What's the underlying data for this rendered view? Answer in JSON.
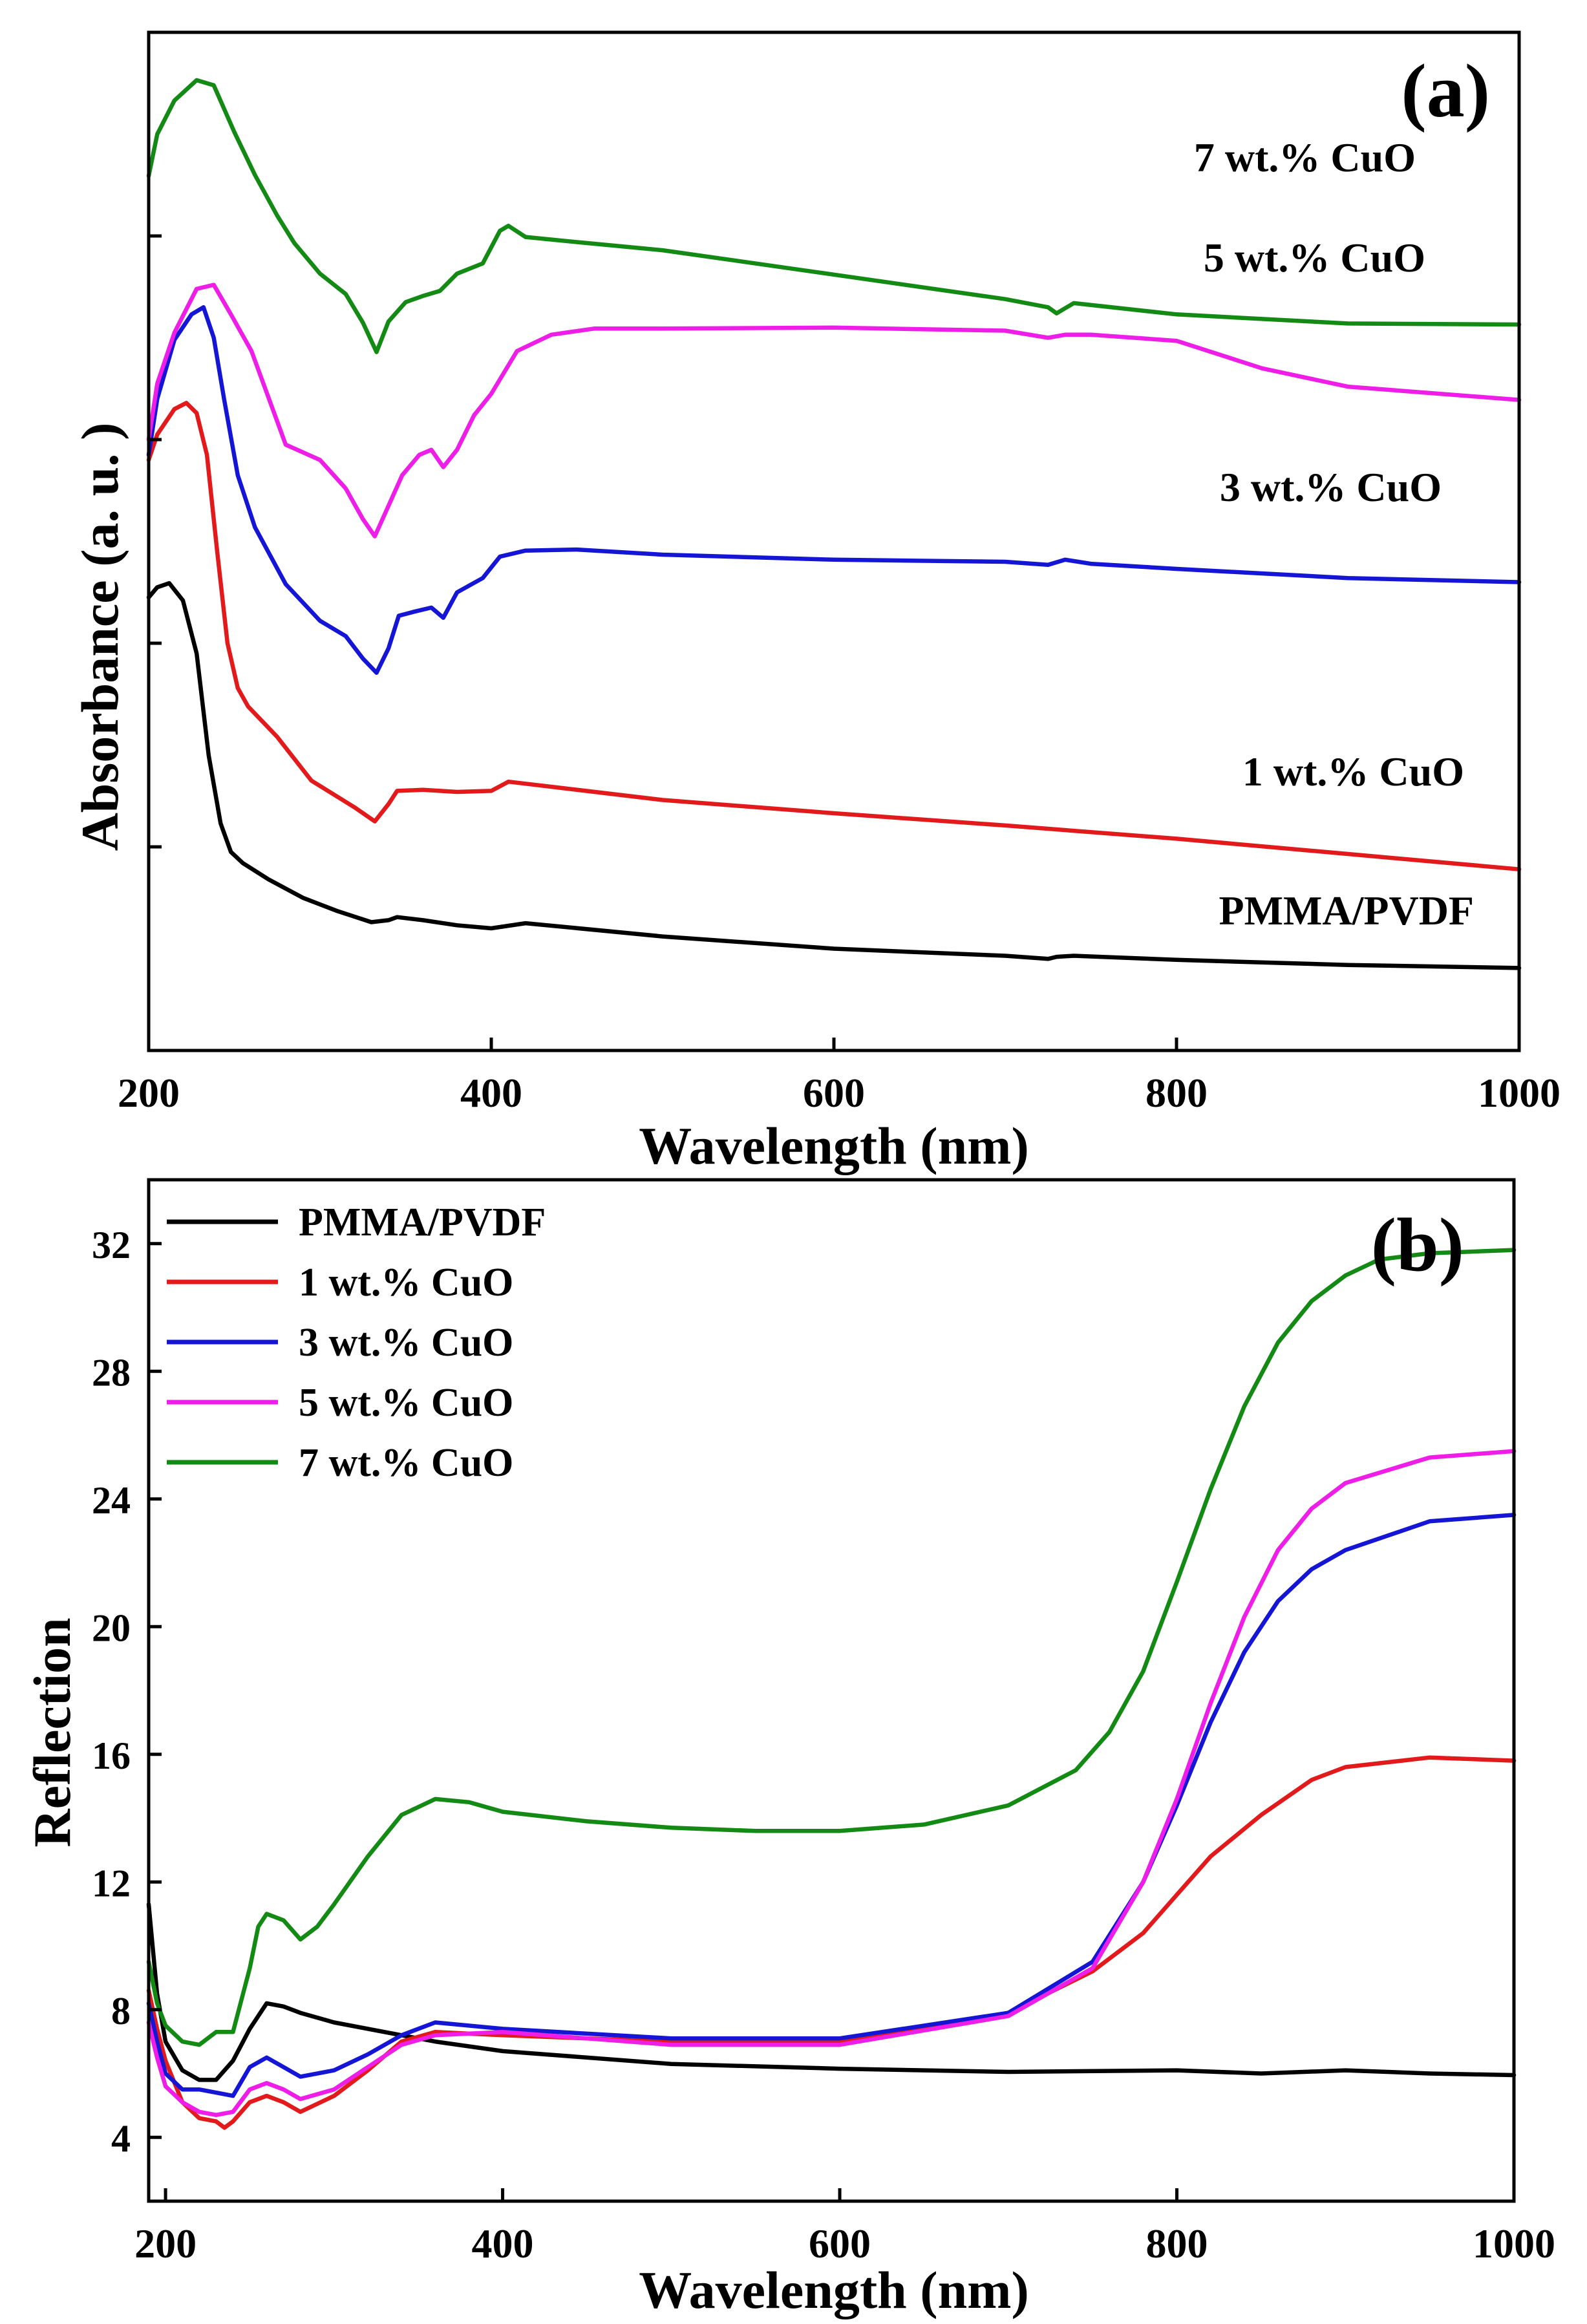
{
  "chart_data": [
    {
      "id": "a",
      "type": "line",
      "panel_label": "(a)",
      "title": "",
      "xlabel": "Wavelength (nm)",
      "ylabel": "Absorbance (a. u. )",
      "xlim": [
        200,
        1000
      ],
      "ylim": [
        0,
        100
      ],
      "x_ticks": [
        200,
        400,
        600,
        800,
        1000
      ],
      "y_ticks": [
        20,
        40,
        60,
        80,
        100
      ],
      "y_tick_labels_shown": false,
      "legend": "none",
      "series": [
        {
          "name": "PMMA/PVDF",
          "label": "PMMA/PVDF",
          "color": "#000000",
          "x": [
            200,
            205,
            212,
            220,
            228,
            235,
            242,
            248,
            255,
            270,
            290,
            310,
            330,
            340,
            345,
            360,
            380,
            400,
            420,
            500,
            600,
            700,
            725,
            730,
            740,
            800,
            900,
            1000
          ],
          "y": [
            44.5,
            45.5,
            45.9,
            44.2,
            39.0,
            29.0,
            22.3,
            19.5,
            18.4,
            16.8,
            15.0,
            13.7,
            12.6,
            12.8,
            13.1,
            12.8,
            12.3,
            12.0,
            12.5,
            11.2,
            10.0,
            9.3,
            9.0,
            9.2,
            9.3,
            8.9,
            8.4,
            8.1
          ]
        },
        {
          "name": "1 wt.% CuO",
          "label": "1 wt.% CuO",
          "color": "#e31a1c",
          "x": [
            200,
            205,
            215,
            222,
            228,
            234,
            240,
            246,
            252,
            258,
            275,
            295,
            320,
            332,
            340,
            345,
            360,
            380,
            400,
            410,
            420,
            500,
            600,
            700,
            800,
            900,
            1000
          ],
          "y": [
            58.0,
            60.5,
            63.0,
            63.6,
            62.6,
            58.5,
            49.0,
            40.0,
            35.6,
            33.8,
            30.8,
            26.5,
            23.9,
            22.5,
            24.2,
            25.5,
            25.6,
            25.4,
            25.5,
            26.4,
            26.2,
            24.6,
            23.3,
            22.1,
            20.8,
            19.3,
            17.8
          ]
        },
        {
          "name": "3 wt.% CuO",
          "label": "3 wt.% CuO",
          "color": "#1515d6",
          "x": [
            200,
            205,
            215,
            225,
            232,
            238,
            244,
            252,
            262,
            280,
            300,
            315,
            325,
            333,
            340,
            346,
            355,
            365,
            372,
            380,
            395,
            405,
            420,
            450,
            500,
            600,
            700,
            725,
            735,
            750,
            800,
            900,
            1000
          ],
          "y": [
            58.5,
            64.0,
            69.8,
            72.3,
            73.0,
            70.0,
            64.0,
            56.5,
            51.4,
            45.8,
            42.2,
            40.7,
            38.5,
            37.1,
            39.5,
            42.7,
            43.1,
            43.5,
            42.5,
            45.0,
            46.4,
            48.5,
            49.1,
            49.2,
            48.7,
            48.2,
            48.0,
            47.7,
            48.2,
            47.8,
            47.3,
            46.4,
            46.0
          ]
        },
        {
          "name": "5 wt.% CuO",
          "label": "5 wt.% CuO",
          "color": "#ee1ee8",
          "x": [
            200,
            205,
            215,
            228,
            238,
            248,
            260,
            270,
            280,
            300,
            315,
            325,
            332,
            340,
            348,
            358,
            365,
            372,
            380,
            390,
            400,
            415,
            435,
            460,
            500,
            600,
            700,
            725,
            735,
            750,
            800,
            850,
            900,
            1000
          ],
          "y": [
            60.0,
            65.5,
            70.5,
            74.8,
            75.2,
            72.3,
            68.7,
            64.1,
            59.5,
            58.0,
            55.2,
            52.2,
            50.5,
            53.5,
            56.5,
            58.5,
            59.0,
            57.3,
            59.0,
            62.4,
            64.5,
            68.7,
            70.3,
            70.9,
            70.9,
            71.0,
            70.7,
            70.0,
            70.3,
            70.3,
            69.7,
            67.0,
            65.2,
            63.9
          ]
        },
        {
          "name": "7 wt.% CuO",
          "label": "7 wt.% CuO",
          "color": "#138a13",
          "x": [
            200,
            205,
            215,
            228,
            238,
            250,
            262,
            275,
            285,
            300,
            315,
            325,
            333,
            340,
            350,
            360,
            370,
            380,
            395,
            405,
            410,
            420,
            450,
            500,
            600,
            700,
            725,
            730,
            740,
            800,
            900,
            1000
          ],
          "y": [
            85.9,
            90.0,
            93.3,
            95.3,
            94.8,
            90.2,
            86.0,
            82.0,
            79.3,
            76.3,
            74.3,
            71.5,
            68.6,
            71.6,
            73.5,
            74.1,
            74.6,
            76.3,
            77.3,
            80.5,
            81.0,
            79.9,
            79.4,
            78.6,
            76.2,
            73.8,
            73.0,
            72.4,
            73.4,
            72.3,
            71.4,
            71.3
          ]
        }
      ]
    },
    {
      "id": "b",
      "type": "line",
      "panel_label": "(b)",
      "title": "",
      "xlabel": "Wavelength (nm)",
      "ylabel": "Reflection",
      "xlim": [
        190,
        1000
      ],
      "ylim": [
        2,
        34
      ],
      "x_ticks": [
        200,
        400,
        600,
        800,
        1000
      ],
      "y_ticks": [
        4,
        8,
        12,
        16,
        20,
        24,
        28,
        32
      ],
      "legend": "top-left",
      "series": [
        {
          "name": "PMMA/PVDF",
          "color": "#000000",
          "x": [
            190,
            195,
            200,
            210,
            220,
            230,
            240,
            250,
            260,
            270,
            280,
            300,
            340,
            360,
            400,
            500,
            600,
            700,
            800,
            850,
            900,
            950,
            1000
          ],
          "y": [
            11.3,
            8.5,
            7.0,
            6.1,
            5.8,
            5.8,
            6.4,
            7.4,
            8.2,
            8.1,
            7.9,
            7.6,
            7.2,
            7.0,
            6.7,
            6.3,
            6.15,
            6.05,
            6.1,
            6.0,
            6.1,
            6.0,
            5.95
          ]
        },
        {
          "name": "1 wt.% CuO",
          "color": "#e31a1c",
          "x": [
            190,
            195,
            200,
            210,
            220,
            230,
            235,
            240,
            250,
            260,
            270,
            280,
            300,
            320,
            340,
            360,
            400,
            500,
            600,
            700,
            750,
            780,
            800,
            820,
            850,
            880,
            900,
            950,
            1000
          ],
          "y": [
            8.6,
            7.4,
            6.4,
            5.1,
            4.6,
            4.5,
            4.3,
            4.5,
            5.1,
            5.3,
            5.1,
            4.8,
            5.3,
            6.1,
            7.0,
            7.3,
            7.2,
            7.0,
            7.0,
            7.9,
            9.2,
            10.4,
            11.6,
            12.8,
            14.1,
            15.2,
            15.6,
            15.9,
            15.8
          ]
        },
        {
          "name": "3 wt.% CuO",
          "color": "#1515d6",
          "x": [
            190,
            195,
            200,
            210,
            220,
            230,
            240,
            250,
            260,
            270,
            280,
            300,
            320,
            340,
            360,
            400,
            500,
            600,
            700,
            750,
            780,
            800,
            820,
            840,
            860,
            880,
            900,
            950,
            1000
          ],
          "y": [
            8.2,
            7.0,
            6.0,
            5.5,
            5.5,
            5.4,
            5.3,
            6.2,
            6.5,
            6.2,
            5.9,
            6.1,
            6.6,
            7.2,
            7.6,
            7.4,
            7.1,
            7.1,
            7.9,
            9.5,
            12.0,
            14.4,
            17.0,
            19.2,
            20.8,
            21.8,
            22.4,
            23.3,
            23.5
          ]
        },
        {
          "name": "5 wt.% CuO",
          "color": "#ee1ee8",
          "x": [
            190,
            195,
            200,
            210,
            220,
            230,
            240,
            250,
            260,
            270,
            280,
            300,
            320,
            340,
            360,
            400,
            500,
            600,
            700,
            750,
            780,
            800,
            820,
            840,
            860,
            880,
            900,
            950,
            1000
          ],
          "y": [
            7.6,
            6.5,
            5.6,
            5.1,
            4.8,
            4.7,
            4.8,
            5.5,
            5.7,
            5.5,
            5.2,
            5.5,
            6.2,
            6.9,
            7.2,
            7.3,
            6.9,
            6.9,
            7.8,
            9.3,
            12.0,
            14.6,
            17.6,
            20.3,
            22.4,
            23.7,
            24.5,
            25.3,
            25.5
          ]
        },
        {
          "name": "7 wt.% CuO",
          "color": "#138a13",
          "x": [
            190,
            195,
            200,
            210,
            220,
            230,
            240,
            250,
            255,
            260,
            270,
            280,
            290,
            300,
            320,
            340,
            360,
            380,
            400,
            450,
            500,
            550,
            600,
            650,
            700,
            740,
            760,
            780,
            800,
            820,
            840,
            860,
            880,
            900,
            920,
            950,
            1000
          ],
          "y": [
            9.5,
            8.2,
            7.5,
            7.0,
            6.9,
            7.3,
            7.3,
            9.3,
            10.6,
            11.0,
            10.8,
            10.2,
            10.6,
            11.3,
            12.8,
            14.1,
            14.6,
            14.5,
            14.2,
            13.9,
            13.7,
            13.6,
            13.6,
            13.8,
            14.4,
            15.5,
            16.7,
            18.6,
            21.4,
            24.3,
            26.9,
            28.9,
            30.2,
            31.0,
            31.5,
            31.7,
            31.8
          ]
        }
      ]
    }
  ]
}
